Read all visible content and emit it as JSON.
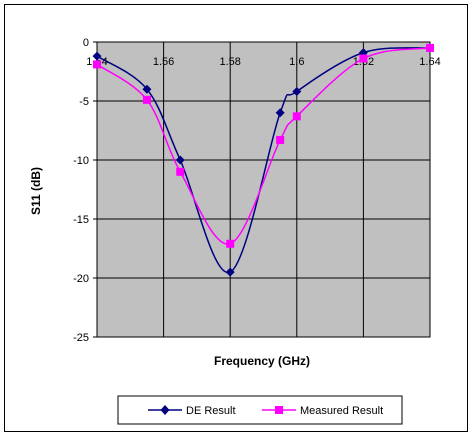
{
  "chart_data": {
    "type": "line",
    "xlabel": "Frequency (GHz)",
    "ylabel": "S11 (dB)",
    "xlim": [
      1.54,
      1.64
    ],
    "ylim": [
      -25,
      0
    ],
    "x_ticks": [
      "1.54",
      "1.56",
      "1.58",
      "1.6",
      "1.62",
      "1.64"
    ],
    "y_ticks": [
      "0",
      "-5",
      "-10",
      "-15",
      "-20",
      "-25"
    ],
    "grid": true,
    "plot_background": "#c0c0c0",
    "legend_position": "bottom",
    "series": [
      {
        "name": "DE Result",
        "color": "#000080",
        "marker": "diamond",
        "x": [
          1.54,
          1.555,
          1.565,
          1.58,
          1.595,
          1.6,
          1.62,
          1.64
        ],
        "y": [
          -1.2,
          -4.0,
          -10.0,
          -19.5,
          -6.0,
          -4.2,
          -0.9,
          -0.5
        ]
      },
      {
        "name": "Measured Result",
        "color": "#ff00ff",
        "marker": "square",
        "x": [
          1.54,
          1.555,
          1.565,
          1.58,
          1.595,
          1.6,
          1.62,
          1.64
        ],
        "y": [
          -1.9,
          -4.9,
          -11.0,
          -17.1,
          -8.3,
          -6.3,
          -1.4,
          -0.5
        ]
      }
    ]
  }
}
